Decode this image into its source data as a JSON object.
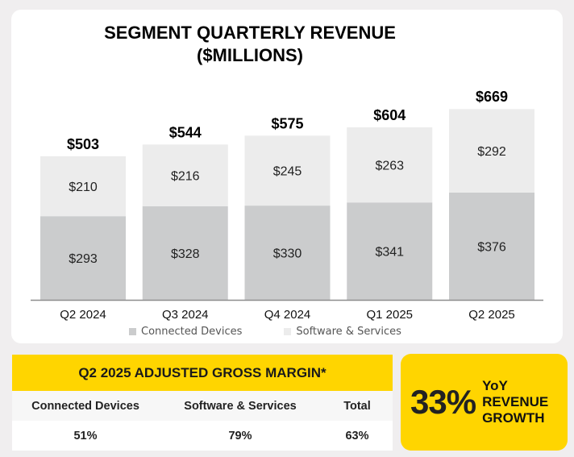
{
  "chart_data": {
    "type": "bar",
    "stacked": true,
    "title": "SEGMENT QUARTERLY REVENUE ($MILLIONS)",
    "title_lines": [
      "SEGMENT QUARTERLY REVENUE",
      "($MILLIONS)"
    ],
    "categories": [
      "Q2 2024",
      "Q3 2024",
      "Q4 2024",
      "Q1 2025",
      "Q2 2025"
    ],
    "series": [
      {
        "name": "Connected Devices",
        "values": [
          293,
          328,
          330,
          341,
          376
        ],
        "color": "#cbcccd"
      },
      {
        "name": "Software & Services",
        "values": [
          210,
          216,
          245,
          263,
          292
        ],
        "color": "#ececec"
      }
    ],
    "totals": [
      503,
      544,
      575,
      604,
      669
    ],
    "value_prefix": "$",
    "xlabel": "",
    "ylabel": "",
    "ylim": [
      0,
      669
    ],
    "grid": false,
    "legend": "bottom"
  },
  "gross_margin": {
    "title": "Q2 2025 ADJUSTED GROSS MARGIN*",
    "headers": [
      "Connected Devices",
      "Software & Services",
      "Total"
    ],
    "values": [
      "51%",
      "79%",
      "63%"
    ]
  },
  "yoy": {
    "value": "33%",
    "label_lines": [
      "YoY",
      "REVENUE",
      "GROWTH"
    ]
  },
  "colors": {
    "accent": "#ffd500",
    "background": "#f0eeef"
  }
}
